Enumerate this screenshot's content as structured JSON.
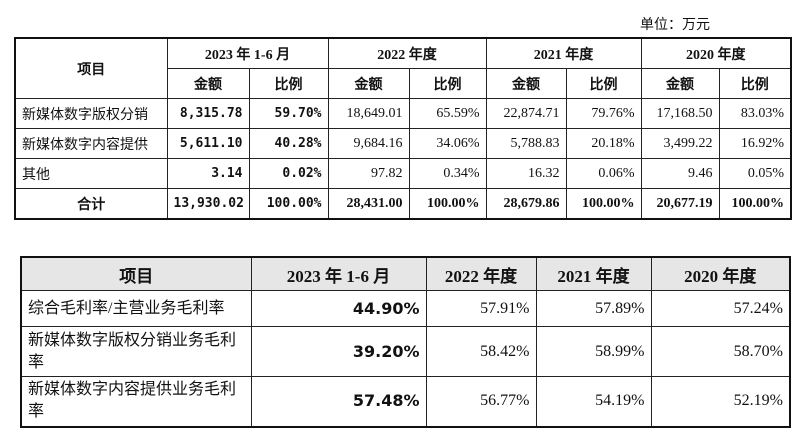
{
  "unit": "单位：万元",
  "table1": {
    "header": [
      "项目",
      "2023 年 1-6 月",
      "2022 年度",
      "2021 年度",
      "2020 年度"
    ],
    "subheader": [
      "金额",
      "比例",
      "金额",
      "比例",
      "金额",
      "比例",
      "金额",
      "比例"
    ],
    "rows": [
      [
        "新媒体数字版权分销",
        "8,315.78",
        "59.70%",
        "18,649.01",
        "65.59%",
        "22,874.71",
        "79.76%",
        "17,168.50",
        "83.03%"
      ],
      [
        "新媒体数字内容提供",
        "5,611.10",
        "40.28%",
        "9,684.16",
        "34.06%",
        "5,788.83",
        "20.18%",
        "3,499.22",
        "16.92%"
      ],
      [
        "其他",
        "3.14",
        "0.02%",
        "97.82",
        "0.34%",
        "16.32",
        "0.06%",
        "9.46",
        "0.05%"
      ],
      [
        "合计",
        "13,930.02",
        "100.00%",
        "28,431.00",
        "100.00%",
        "28,679.86",
        "100.00%",
        "20,677.19",
        "100.00%"
      ]
    ]
  },
  "table2": {
    "header": [
      "项目",
      "2023 年 1-6 月",
      "2022 年度",
      "2021 年度",
      "2020 年度"
    ],
    "rows": [
      [
        "综合毛利率/主营业务毛利率",
        "44.90%",
        "57.91%",
        "57.89%",
        "57.24%"
      ],
      [
        "新媒体数字版权分销业务毛利率",
        "39.20%",
        "58.42%",
        "58.99%",
        "58.70%"
      ],
      [
        "新媒体数字内容提供业务毛利率",
        "57.48%",
        "56.77%",
        "54.19%",
        "52.19%"
      ]
    ]
  }
}
